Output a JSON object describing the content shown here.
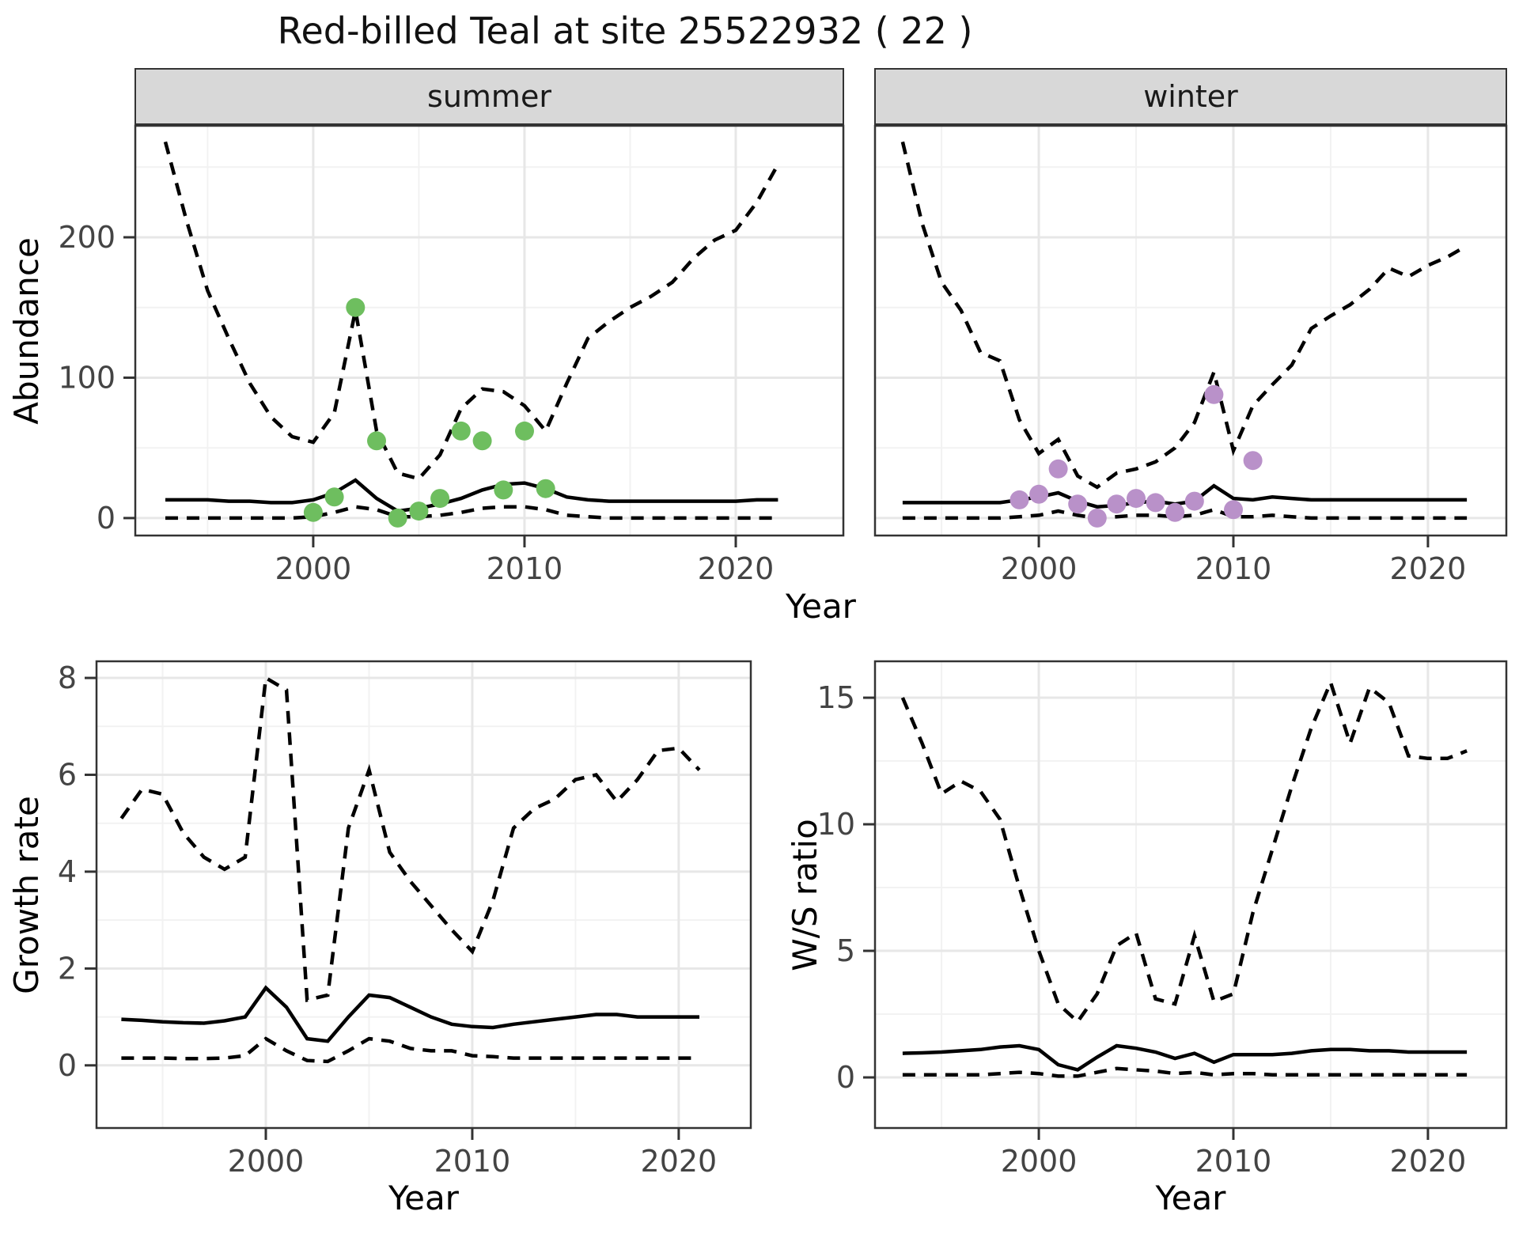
{
  "title": "Red-billed Teal at site 25522932 ( 22 )",
  "facets": {
    "summer": "summer",
    "winter": "winter"
  },
  "labels": {
    "year": "Year",
    "abundance": "Abundance",
    "growth_rate": "Growth rate",
    "ws_ratio": "W/S ratio"
  },
  "colors": {
    "summer_points": "#6ebe5f",
    "winter_points": "#b991c9",
    "line": "#000000",
    "grid_major": "#e7e7e7",
    "grid_minor": "#f2f2f2",
    "strip_bg": "#d8d8d8",
    "axis_text": "#444444",
    "panel_border": "#333333"
  },
  "chart_data": [
    {
      "id": "summer-abundance",
      "type": "line",
      "title": "summer",
      "xlabel": "Year",
      "ylabel": "Abundance",
      "xlim": [
        1991.54,
        2025.13
      ],
      "ylim": [
        -13,
        280
      ],
      "x_ticks": [
        2000,
        2010,
        2020
      ],
      "x_minor": [
        1995,
        2005,
        2015
      ],
      "y_ticks": [
        0,
        100,
        200
      ],
      "y_minor": [
        50,
        150,
        250
      ],
      "grid": true,
      "legend": "none",
      "years": [
        1993,
        1994,
        1995,
        1996,
        1997,
        1998,
        1999,
        2000,
        2001,
        2002,
        2003,
        2004,
        2005,
        2006,
        2007,
        2008,
        2009,
        2010,
        2011,
        2012,
        2013,
        2014,
        2015,
        2016,
        2017,
        2018,
        2019,
        2020,
        2021,
        2022
      ],
      "series": [
        {
          "name": "upper_95ci",
          "style": "dashed",
          "values": [
            268,
            212,
            162,
            128,
            96,
            72,
            58,
            54,
            75,
            148,
            62,
            32,
            28,
            45,
            78,
            92,
            90,
            80,
            62,
            96,
            128,
            140,
            150,
            158,
            168,
            185,
            198,
            205,
            225,
            252
          ]
        },
        {
          "name": "median",
          "style": "solid",
          "values": [
            13,
            13,
            13,
            12,
            12,
            11,
            11,
            13,
            18,
            27,
            14,
            5,
            7,
            10,
            14,
            20,
            24,
            25,
            21,
            15,
            13,
            12,
            12,
            12,
            12,
            12,
            12,
            12,
            13,
            13
          ]
        },
        {
          "name": "lower_95ci",
          "style": "dashed",
          "values": [
            0,
            0,
            0,
            0,
            0,
            0,
            0,
            1,
            4,
            8,
            6,
            1,
            1,
            2,
            4,
            7,
            8,
            8,
            6,
            2,
            1,
            0,
            0,
            0,
            0,
            0,
            0,
            0,
            0,
            0
          ]
        }
      ],
      "points": {
        "name": "observed-counts-summer",
        "color": "#6ebe5f",
        "years": [
          2000,
          2001,
          2002,
          2003,
          2004,
          2005,
          2006,
          2007,
          2008,
          2009,
          2010,
          2011
        ],
        "values": [
          4,
          15,
          150,
          55,
          0,
          5,
          14,
          62,
          55,
          20,
          62,
          21
        ]
      }
    },
    {
      "id": "winter-abundance",
      "type": "line",
      "title": "winter",
      "xlabel": "Year",
      "ylabel": "Abundance",
      "xlim": [
        1991.54,
        2024.07
      ],
      "ylim": [
        -13,
        280
      ],
      "x_ticks": [
        2000,
        2010,
        2020
      ],
      "x_minor": [
        1995,
        2005,
        2015
      ],
      "y_ticks": [
        0,
        100,
        200
      ],
      "y_minor": [
        50,
        150,
        250
      ],
      "grid": true,
      "legend": "none",
      "years": [
        1993,
        1994,
        1995,
        1996,
        1997,
        1998,
        1999,
        2000,
        2001,
        2002,
        2003,
        2004,
        2005,
        2006,
        2007,
        2008,
        2009,
        2010,
        2011,
        2012,
        2013,
        2014,
        2015,
        2016,
        2017,
        2018,
        2019,
        2020,
        2021,
        2022
      ],
      "series": [
        {
          "name": "upper_95ci",
          "style": "dashed",
          "values": [
            268,
            210,
            168,
            148,
            118,
            112,
            70,
            46,
            56,
            30,
            22,
            32,
            35,
            40,
            50,
            68,
            104,
            48,
            80,
            95,
            109,
            135,
            144,
            152,
            163,
            178,
            172,
            180,
            186,
            194
          ]
        },
        {
          "name": "median",
          "style": "solid",
          "values": [
            11,
            11,
            11,
            11,
            11,
            11,
            13,
            15,
            18,
            12,
            8,
            9,
            11,
            12,
            10,
            12,
            23,
            14,
            13,
            15,
            14,
            13,
            13,
            13,
            13,
            13,
            13,
            13,
            13,
            13
          ]
        },
        {
          "name": "lower_95ci",
          "style": "dashed",
          "values": [
            0,
            0,
            0,
            0,
            0,
            0,
            1,
            2,
            5,
            2,
            0,
            1,
            2,
            2,
            1,
            2,
            6,
            1,
            1,
            2,
            1,
            0,
            0,
            0,
            0,
            0,
            0,
            0,
            0,
            0
          ]
        }
      ],
      "points": {
        "name": "observed-counts-winter",
        "color": "#b991c9",
        "years": [
          1999,
          2000,
          2001,
          2002,
          2003,
          2004,
          2005,
          2006,
          2007,
          2008,
          2009,
          2010,
          2011
        ],
        "values": [
          13,
          17,
          35,
          10,
          0,
          10,
          14,
          11,
          4,
          12,
          88,
          6,
          41
        ]
      }
    },
    {
      "id": "growth-rate",
      "type": "line",
      "title": "Growth rate",
      "xlabel": "Year",
      "ylabel": "Growth rate",
      "xlim": [
        1991.76,
        2023.53
      ],
      "ylim": [
        -1.31,
        8.36
      ],
      "x_ticks": [
        2000,
        2010,
        2020
      ],
      "x_minor": [
        1995,
        2005,
        2015
      ],
      "y_ticks": [
        0,
        2,
        4,
        6,
        8
      ],
      "y_minor": [
        1,
        3,
        5,
        7
      ],
      "grid": true,
      "legend": "none",
      "years": [
        1993,
        1994,
        1995,
        1996,
        1997,
        1998,
        1999,
        2000,
        2001,
        2002,
        2003,
        2004,
        2005,
        2006,
        2007,
        2008,
        2009,
        2010,
        2011,
        2012,
        2013,
        2014,
        2015,
        2016,
        2017,
        2018,
        2019,
        2020,
        2021
      ],
      "series": [
        {
          "name": "upper_95ci",
          "style": "dashed",
          "values": [
            5.1,
            5.7,
            5.6,
            4.8,
            4.3,
            4.05,
            4.3,
            8.0,
            7.75,
            1.35,
            1.45,
            4.9,
            6.1,
            4.4,
            3.8,
            3.3,
            2.8,
            2.35,
            3.4,
            4.9,
            5.3,
            5.5,
            5.9,
            6.0,
            5.45,
            5.9,
            6.5,
            6.55,
            6.1
          ]
        },
        {
          "name": "median",
          "style": "solid",
          "values": [
            0.95,
            0.93,
            0.9,
            0.88,
            0.87,
            0.92,
            1.0,
            1.6,
            1.2,
            0.55,
            0.5,
            1.0,
            1.45,
            1.4,
            1.2,
            1.0,
            0.85,
            0.8,
            0.78,
            0.85,
            0.9,
            0.95,
            1.0,
            1.05,
            1.05,
            1.0,
            1.0,
            1.0,
            1.0
          ]
        },
        {
          "name": "lower_95ci",
          "style": "dashed",
          "values": [
            0.15,
            0.15,
            0.15,
            0.14,
            0.14,
            0.15,
            0.2,
            0.55,
            0.3,
            0.1,
            0.08,
            0.3,
            0.55,
            0.5,
            0.35,
            0.3,
            0.3,
            0.2,
            0.18,
            0.15,
            0.15,
            0.15,
            0.15,
            0.15,
            0.15,
            0.15,
            0.15,
            0.15,
            0.15
          ]
        }
      ],
      "points": null
    },
    {
      "id": "ws-ratio",
      "type": "line",
      "title": "W/S ratio",
      "xlabel": "Year",
      "ylabel": "W/S ratio",
      "xlim": [
        1991.54,
        2024.07
      ],
      "ylim": [
        -2.03,
        16.47
      ],
      "x_ticks": [
        2000,
        2010,
        2020
      ],
      "x_minor": [
        1995,
        2005,
        2015
      ],
      "y_ticks": [
        0,
        5,
        10,
        15
      ],
      "y_minor": [
        2.5,
        7.5,
        12.5
      ],
      "grid": true,
      "legend": "none",
      "years": [
        1993,
        1994,
        1995,
        1996,
        1997,
        1998,
        1999,
        2000,
        2001,
        2002,
        2003,
        2004,
        2005,
        2006,
        2007,
        2008,
        2009,
        2010,
        2011,
        2012,
        2013,
        2014,
        2015,
        2016,
        2017,
        2018,
        2019,
        2020,
        2021,
        2022
      ],
      "series": [
        {
          "name": "upper_95ci",
          "style": "dashed",
          "values": [
            15.0,
            13.2,
            11.2,
            11.7,
            11.3,
            10.2,
            7.5,
            5.0,
            2.9,
            2.2,
            3.3,
            5.2,
            5.7,
            3.1,
            2.9,
            5.6,
            3.0,
            3.3,
            6.5,
            9.0,
            11.5,
            13.8,
            15.6,
            13.2,
            15.4,
            14.8,
            12.7,
            12.6,
            12.6,
            12.9
          ]
        },
        {
          "name": "median",
          "style": "solid",
          "values": [
            0.95,
            0.97,
            1.0,
            1.05,
            1.1,
            1.2,
            1.25,
            1.1,
            0.5,
            0.3,
            0.8,
            1.25,
            1.15,
            1.0,
            0.75,
            0.95,
            0.6,
            0.9,
            0.9,
            0.9,
            0.95,
            1.05,
            1.1,
            1.1,
            1.05,
            1.05,
            1.0,
            1.0,
            1.0,
            1.0
          ]
        },
        {
          "name": "lower_95ci",
          "style": "dashed",
          "values": [
            0.1,
            0.1,
            0.1,
            0.1,
            0.1,
            0.15,
            0.2,
            0.15,
            0.05,
            0.05,
            0.2,
            0.35,
            0.3,
            0.25,
            0.15,
            0.2,
            0.1,
            0.15,
            0.15,
            0.1,
            0.1,
            0.1,
            0.1,
            0.1,
            0.1,
            0.1,
            0.1,
            0.1,
            0.1,
            0.1
          ]
        }
      ],
      "points": null
    }
  ]
}
